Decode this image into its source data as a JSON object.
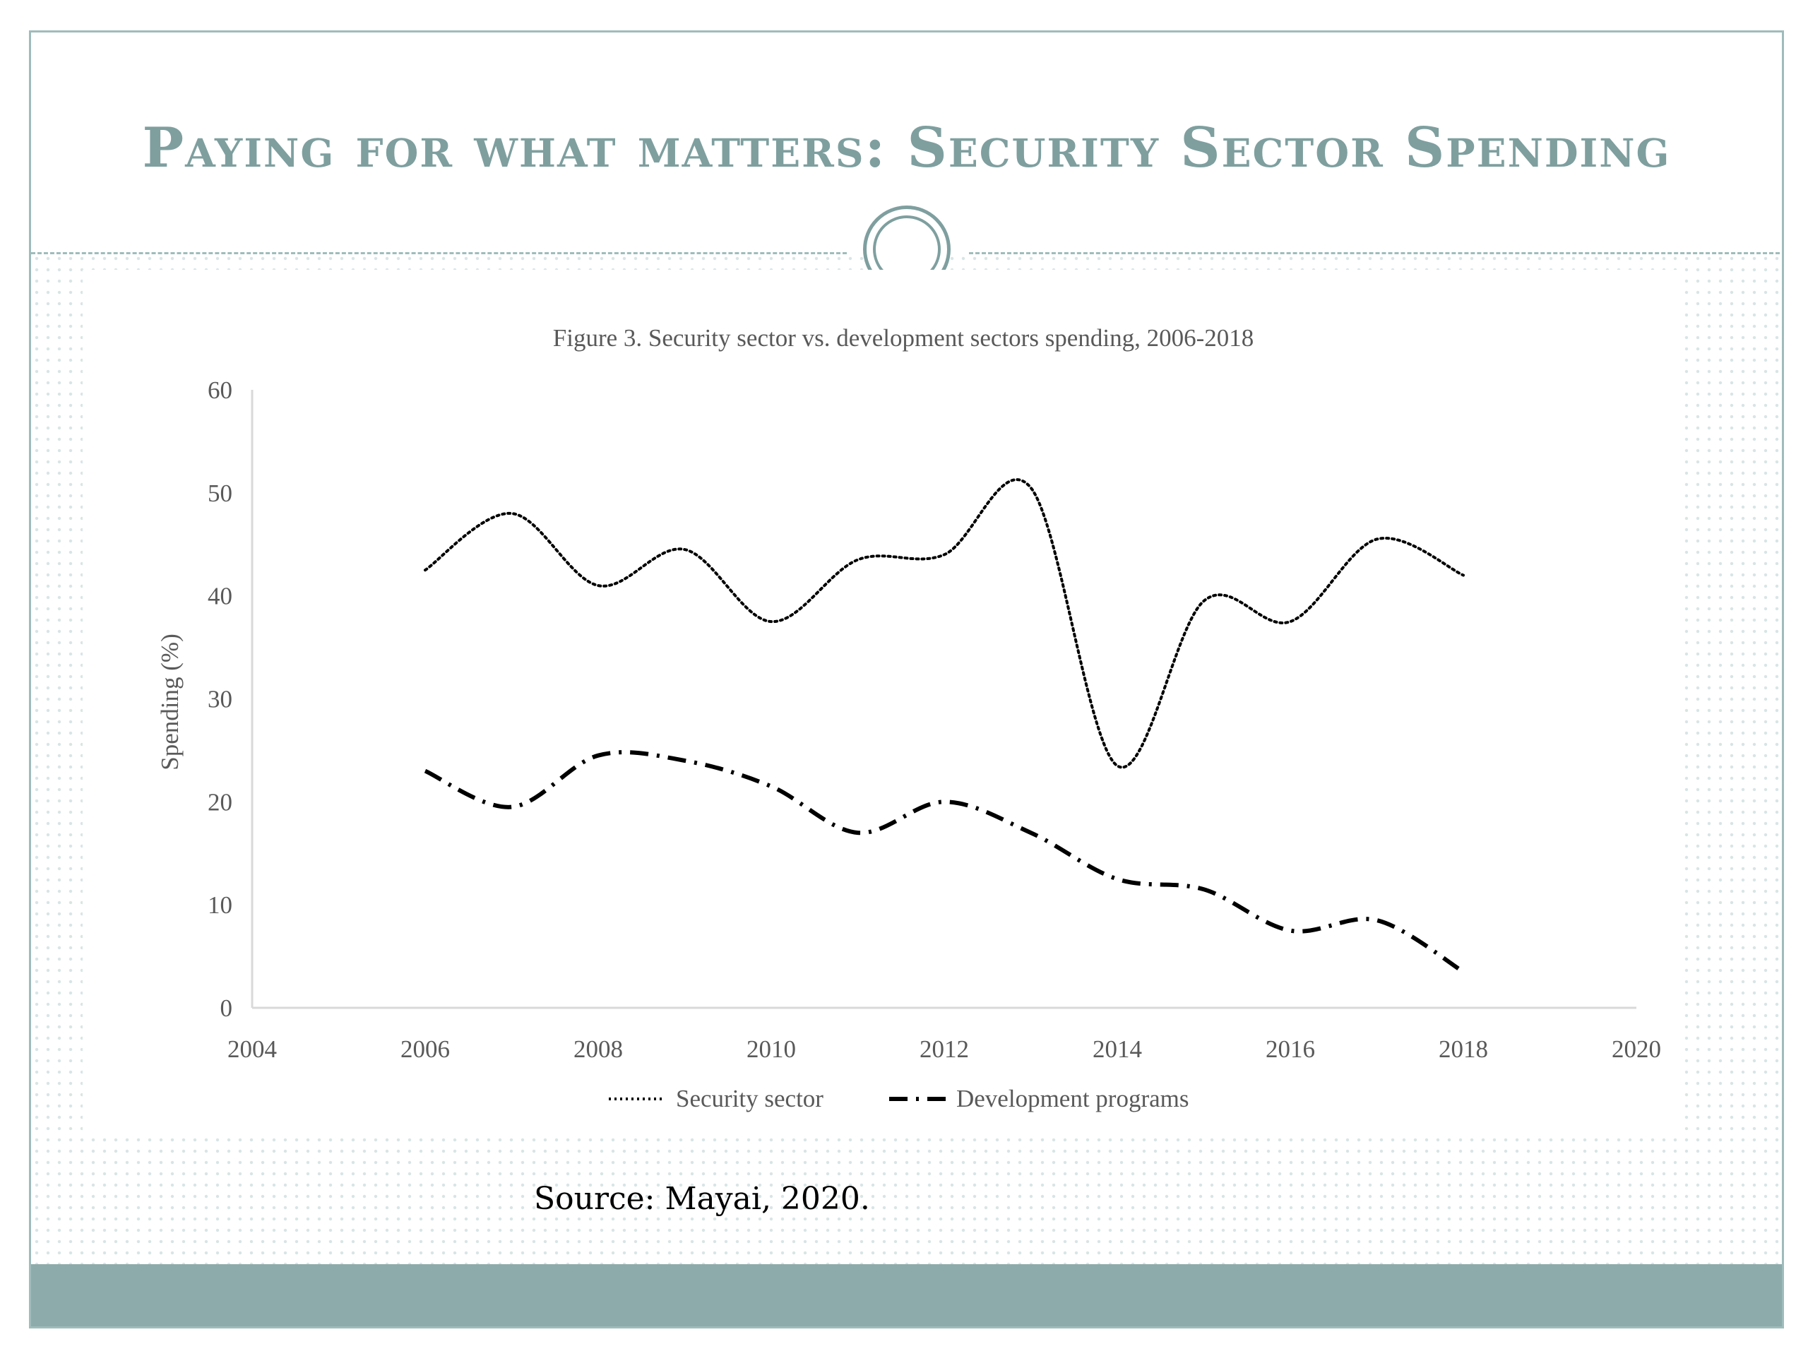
{
  "slide": {
    "title": "Paying for what matters: Security Sector Spending",
    "source": "Source: Mayai, 2020.",
    "colors": {
      "accent": "#7f9f9f",
      "band": "#8eabab",
      "border": "#9fbcbc"
    }
  },
  "chart_data": {
    "type": "line",
    "title": "Figure 3. Security sector vs. development sectors spending, 2006-2018",
    "xlabel": "",
    "ylabel": "Spending (%)",
    "xlim": [
      2004,
      2020
    ],
    "ylim": [
      0,
      60
    ],
    "x_ticks": [
      2004,
      2006,
      2008,
      2010,
      2012,
      2014,
      2016,
      2018,
      2020
    ],
    "y_ticks": [
      0,
      10,
      20,
      30,
      40,
      50,
      60
    ],
    "x": [
      2006,
      2007,
      2008,
      2009,
      2010,
      2011,
      2012,
      2013,
      2014,
      2015,
      2016,
      2017,
      2018
    ],
    "series": [
      {
        "name": "Security sector",
        "style": "dotted",
        "values": [
          42.5,
          48,
          41,
          44.5,
          37.5,
          43.5,
          44,
          50.5,
          23.5,
          39.5,
          37.5,
          45.5,
          42
        ]
      },
      {
        "name": "Development programs",
        "style": "dash-dot",
        "values": [
          23,
          19.5,
          24.5,
          24,
          21.5,
          17,
          20,
          17,
          12.5,
          11.5,
          7.5,
          8.5,
          3.5
        ]
      }
    ],
    "legend": "bottom",
    "grid": false
  }
}
